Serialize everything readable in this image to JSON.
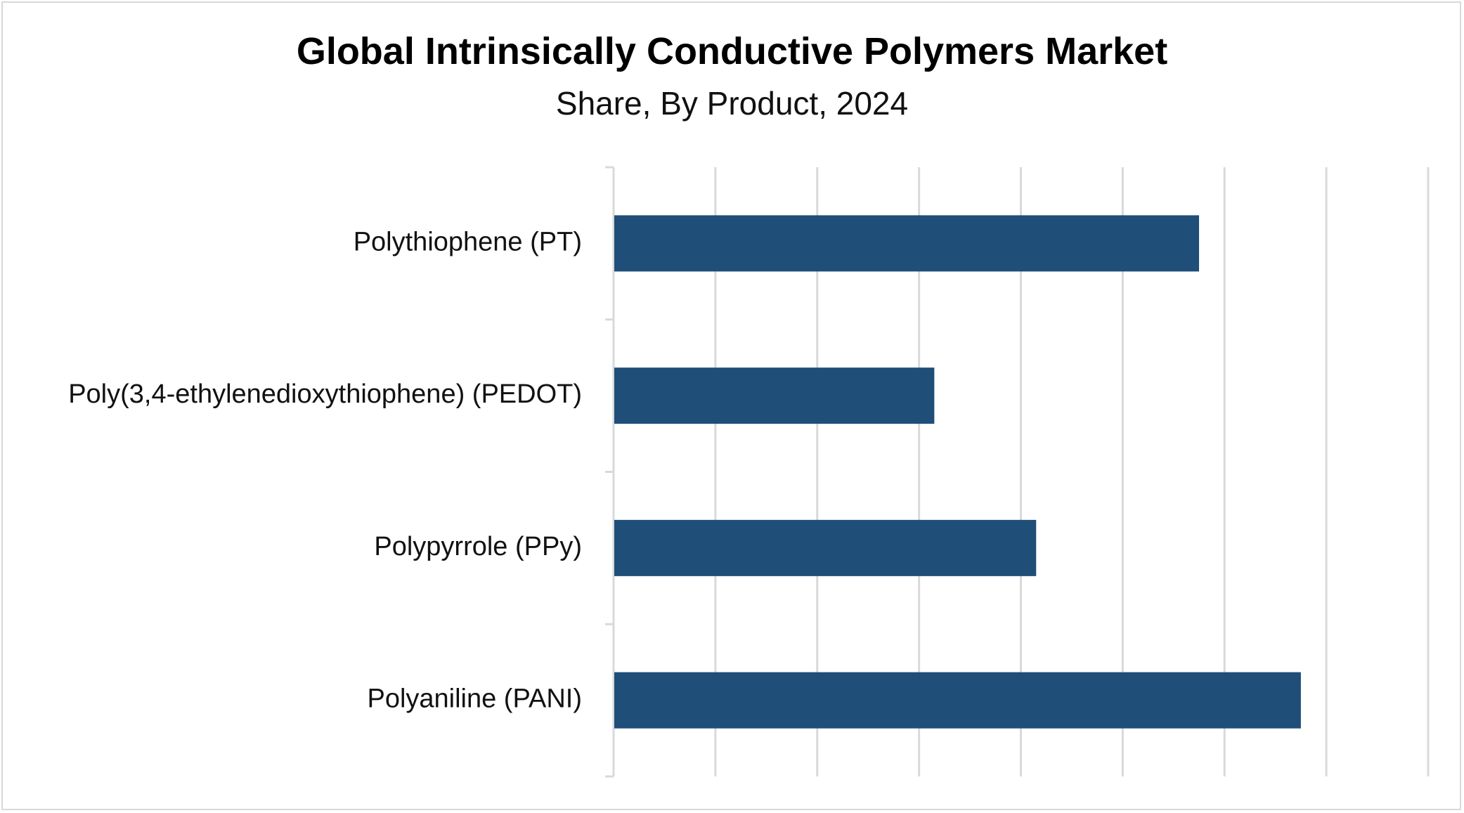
{
  "chart_data": {
    "type": "bar",
    "orientation": "horizontal",
    "title": "Global Intrinsically Conductive Polymers Market",
    "subtitle": "Share, By Product, 2024",
    "categories": [
      "Polythiophene (PT)",
      "Poly(3,4-ethylenedioxythiophene) (PEDOT)",
      "Polypyrrole (PPy)",
      "Polyaniline (PANI)"
    ],
    "values": [
      5.75,
      3.15,
      4.15,
      6.75
    ],
    "xlim": [
      0,
      8
    ],
    "x_gridlines": 8,
    "grid": true,
    "legend": "none",
    "bar_color": "#1f4e79",
    "grid_color": "#d9d9d9"
  }
}
